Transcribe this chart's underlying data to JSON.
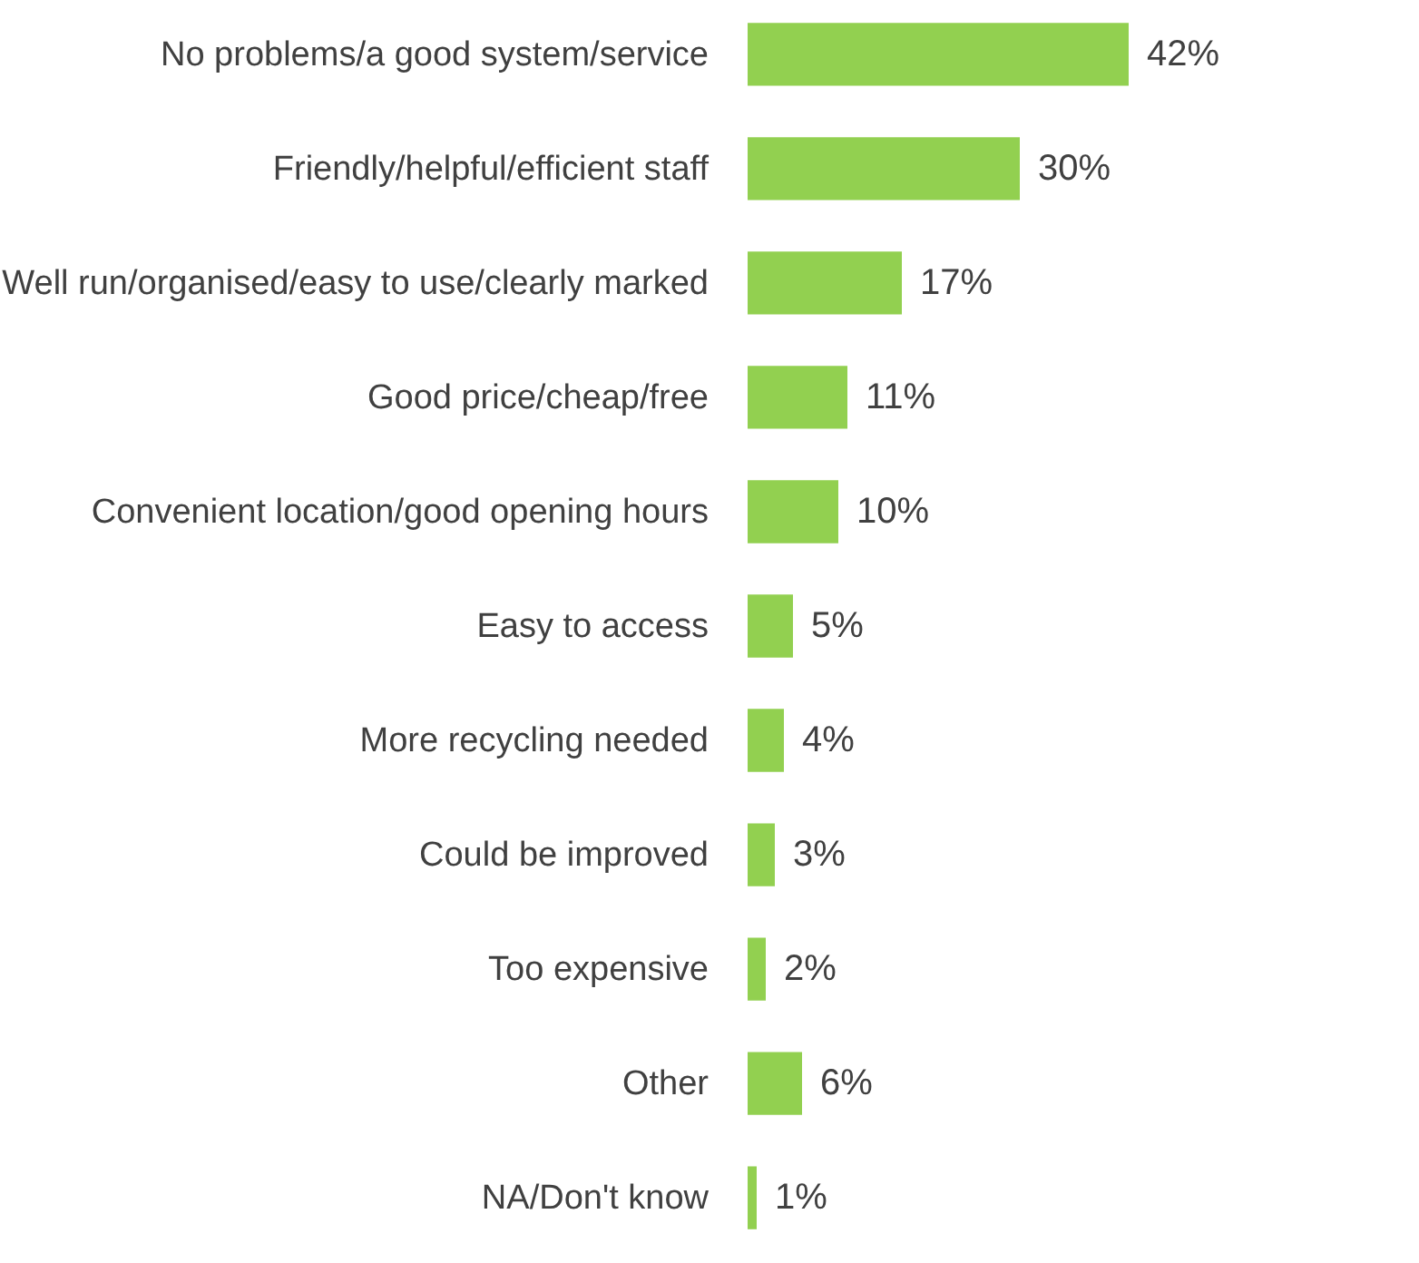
{
  "chart_data": {
    "type": "bar",
    "orientation": "horizontal",
    "color": "#92d050",
    "categories": [
      "No problems/a good system/service",
      "Friendly/helpful/efficient staff",
      "Well run/organised/easy to use/clearly marked",
      "Good price/cheap/free",
      "Convenient location/good opening hours",
      "Easy to access",
      "More recycling needed",
      "Could be improved",
      "Too expensive",
      "Other",
      "NA/Don't know"
    ],
    "values": [
      42,
      30,
      17,
      11,
      10,
      5,
      4,
      3,
      2,
      6,
      1
    ],
    "value_labels": [
      "42%",
      "30%",
      "17%",
      "11%",
      "10%",
      "5%",
      "4%",
      "3%",
      "2%",
      "6%",
      "1%"
    ]
  }
}
